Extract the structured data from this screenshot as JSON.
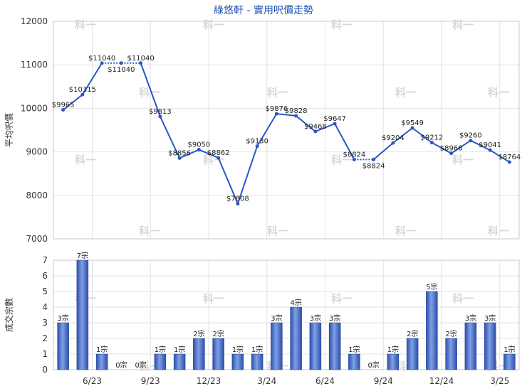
{
  "chart_data": [
    {
      "type": "line",
      "title": "綠悠軒 - 實用呎價走勢",
      "ylabel": "平均呎價",
      "ylim": [
        7000,
        12000
      ],
      "yticks": [
        7000,
        8000,
        9000,
        10000,
        11000,
        12000
      ],
      "points": [
        {
          "y": 9965,
          "label": "$9965"
        },
        {
          "y": 10315,
          "label": "$10315"
        },
        {
          "y": 11040,
          "label": "$11040"
        },
        {
          "y": 11040,
          "label": "$11040"
        },
        {
          "y": 11040,
          "label": "$11040"
        },
        {
          "y": 9813,
          "label": "$9813"
        },
        {
          "y": 8856,
          "label": "$8856"
        },
        {
          "y": 9050,
          "label": "$9050"
        },
        {
          "y": 8862,
          "label": "$8862"
        },
        {
          "y": 7808,
          "label": "$7808"
        },
        {
          "y": 9130,
          "label": "$9130"
        },
        {
          "y": 9876,
          "label": "$9876"
        },
        {
          "y": 9828,
          "label": "$9828"
        },
        {
          "y": 9468,
          "label": "$9468"
        },
        {
          "y": 9647,
          "label": "$9647"
        },
        {
          "y": 8824,
          "label": "$8824"
        },
        {
          "y": 8824,
          "label": "$8824"
        },
        {
          "y": 9204,
          "label": "$9204"
        },
        {
          "y": 9549,
          "label": "$9549"
        },
        {
          "y": 9212,
          "label": "$9212"
        },
        {
          "y": 8966,
          "label": "$8966"
        },
        {
          "y": 9260,
          "label": "$9260"
        },
        {
          "y": 9041,
          "label": "$9041"
        },
        {
          "y": 8764,
          "label": "$8764"
        }
      ],
      "dotted_segments": [
        [
          2,
          3
        ],
        [
          3,
          4
        ],
        [
          15,
          16
        ]
      ],
      "color": "#2a56c6"
    },
    {
      "type": "bar",
      "ylabel": "成交宗數",
      "ylim": [
        0,
        7
      ],
      "yticks": [
        0,
        1,
        2,
        3,
        4,
        5,
        6,
        7
      ],
      "values": [
        3,
        7,
        1,
        0,
        0,
        1,
        1,
        2,
        2,
        1,
        1,
        3,
        4,
        3,
        3,
        1,
        0,
        1,
        2,
        5,
        2,
        3,
        3,
        1
      ],
      "value_suffix": "宗",
      "color": "#3a5fbf"
    }
  ],
  "x_axis": {
    "ticks": [
      {
        "after_index": 1,
        "label": "6/23"
      },
      {
        "after_index": 4,
        "label": "9/23"
      },
      {
        "after_index": 7,
        "label": "12/23"
      },
      {
        "after_index": 10,
        "label": "3/24"
      },
      {
        "after_index": 13,
        "label": "6/24"
      },
      {
        "after_index": 16,
        "label": "9/24"
      },
      {
        "after_index": 19,
        "label": "12/24"
      },
      {
        "after_index": 22,
        "label": "3/25"
      }
    ]
  },
  "watermark": "科一"
}
